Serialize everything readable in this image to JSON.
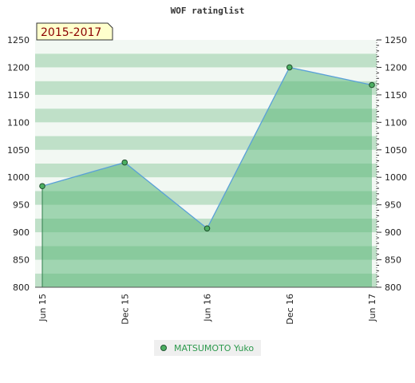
{
  "chart_data": {
    "type": "area",
    "title": "WOF ratinglist",
    "period_label": "2015-2017",
    "x": [
      "Jun 15",
      "Dec 15",
      "Jun 16",
      "Dec 16",
      "Jun 17"
    ],
    "series": [
      {
        "name": "MATSUMOTO Yuko",
        "values": [
          984,
          1027,
          907,
          1200,
          1168
        ]
      }
    ],
    "ylim": [
      800,
      1250
    ],
    "yticks": [
      800,
      850,
      900,
      950,
      1000,
      1050,
      1100,
      1150,
      1200,
      1250
    ],
    "xlabel": "",
    "ylabel": "",
    "grid": true,
    "legend": "bottom-center",
    "colors": {
      "line": "#5aa0d8",
      "area": "#5cb87a",
      "marker": "#4caf62",
      "band_dark": "#bfe0c8",
      "band_light": "#f2f8f3",
      "badge_bg": "#ffffcc"
    }
  }
}
